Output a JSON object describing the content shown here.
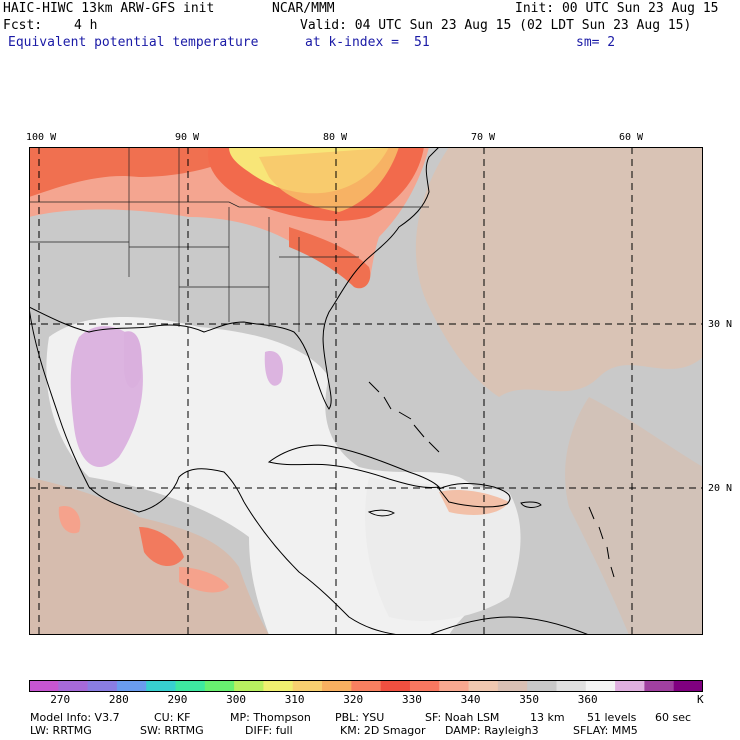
{
  "header": {
    "model": "HAIC-HIWC 13km ARW-GFS init",
    "org": "NCAR/MMM",
    "init": "Init: 00 UTC Sun 23 Aug 15",
    "fcst_label": "Fcst:",
    "fcst_value": "4 h",
    "valid": "Valid: 04 UTC Sun 23 Aug 15 (02 LDT Sun 23 Aug 15)",
    "field": "Equivalent potential temperature",
    "level": "at k-index =",
    "level_value": "51",
    "smooth": "sm= 2"
  },
  "map": {
    "lon_labels": [
      "100 W",
      "90 W",
      "80 W",
      "70 W",
      "60 W"
    ],
    "lat_labels": [
      "30 N",
      "20 N"
    ]
  },
  "colorbar": {
    "ticks": [
      "270",
      "280",
      "290",
      "300",
      "310",
      "320",
      "330",
      "340",
      "350",
      "360"
    ],
    "unit": "K",
    "colors": [
      "#c756d1",
      "#a66ad9",
      "#8a7de3",
      "#6a9cef",
      "#38d0d0",
      "#3ee8a0",
      "#68f070",
      "#b8f060",
      "#f0f070",
      "#f8d070",
      "#f8b060",
      "#f88060",
      "#f05040",
      "#f87860",
      "#f8a890",
      "#f0c8b0",
      "#d9c0b4",
      "#c8c8c8",
      "#e0e0e0",
      "#f4f4f4",
      "#e0b0e0",
      "#a040a0",
      "#800080"
    ]
  },
  "footer": {
    "line1": [
      "Model Info: V3.7",
      "CU: KF",
      "MP: Thompson",
      "PBL: YSU",
      "SF: Noah LSM",
      "13 km",
      "51 levels",
      "60 sec"
    ],
    "line2": [
      "LW: RRTMG",
      "SW: RRTMG",
      "DIFF: full",
      "KM: 2D Smagor",
      "DAMP: Rayleigh3",
      "SFLAY: MM5"
    ]
  }
}
